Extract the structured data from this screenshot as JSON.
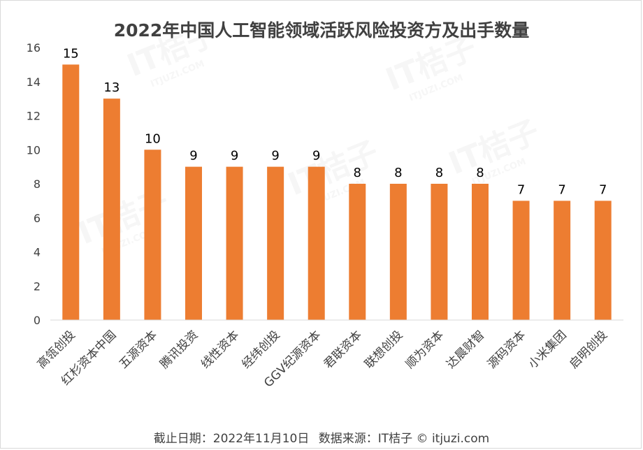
{
  "chart_data": {
    "type": "bar",
    "title": "2022年中国人工智能领域活跃风险投资方及出手数量",
    "categories": [
      "高瓴创投",
      "红杉资本中国",
      "五源资本",
      "腾讯投资",
      "线性资本",
      "经纬创投",
      "GGV纪源资本",
      "君联资本",
      "联想创投",
      "顺为资本",
      "达晨财智",
      "源码资本",
      "小米集团",
      "启明创投"
    ],
    "values": [
      15,
      13,
      10,
      9,
      9,
      9,
      9,
      8,
      8,
      8,
      8,
      7,
      7,
      7
    ],
    "data_labels": [
      "15",
      "13",
      "10",
      "9",
      "9",
      "9",
      "9",
      "8",
      "8",
      "8",
      "8",
      "7",
      "7",
      "7"
    ],
    "ylim": [
      0,
      16
    ],
    "yticks": [
      "0",
      "2",
      "4",
      "6",
      "8",
      "10",
      "12",
      "14",
      "16"
    ],
    "xlabel": "",
    "ylabel": "",
    "grid": false,
    "bar_color": "#ED7D31"
  },
  "footer": {
    "cutoff": "截止日期：2022年11月10日",
    "source": "数据来源：IT桔子 © itjuzi.com"
  },
  "watermark": {
    "text": "IT桔子",
    "url": "ITJUZI.COM"
  }
}
